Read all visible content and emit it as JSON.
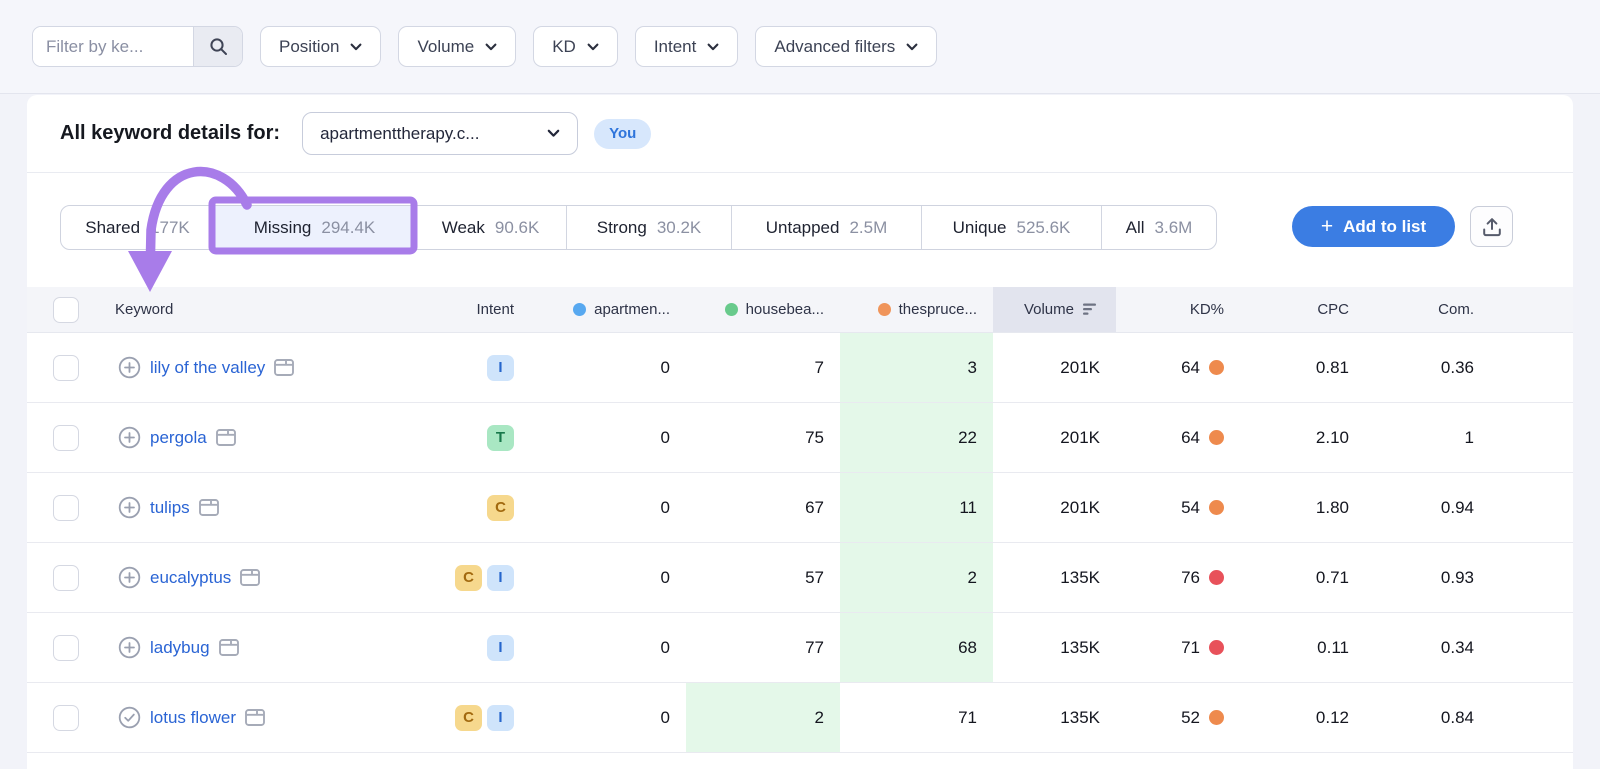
{
  "topbar": {
    "search_placeholder": "Filter by ke...",
    "filters": [
      "Position",
      "Volume",
      "KD",
      "Intent",
      "Advanced filters"
    ]
  },
  "details": {
    "label": "All keyword details for:",
    "domain": "apartmenttherapy.c...",
    "badge": "You"
  },
  "tabs": [
    {
      "label": "Shared",
      "count": "177K",
      "selected": false
    },
    {
      "label": "Missing",
      "count": "294.4K",
      "selected": true
    },
    {
      "label": "Weak",
      "count": "90.6K",
      "selected": false
    },
    {
      "label": "Strong",
      "count": "30.2K",
      "selected": false
    },
    {
      "label": "Untapped",
      "count": "2.5M",
      "selected": false
    },
    {
      "label": "Unique",
      "count": "525.6K",
      "selected": false
    },
    {
      "label": "All",
      "count": "3.6M",
      "selected": false
    }
  ],
  "actions": {
    "add_to_list": "Add to list"
  },
  "annotation_color": "#a87ce9",
  "table": {
    "columns": {
      "keyword": "Keyword",
      "intent": "Intent",
      "competitors": [
        {
          "label": "apartmen...",
          "color": "#57a8f0"
        },
        {
          "label": "housebea...",
          "color": "#68ca8c"
        },
        {
          "label": "thespruce...",
          "color": "#f0955b"
        }
      ],
      "volume": "Volume",
      "kd": "KD%",
      "cpc": "CPC",
      "com": "Com."
    },
    "rows": [
      {
        "keyword": "lily of the valley",
        "added": false,
        "intents": [
          "I"
        ],
        "competitor_values": [
          "0",
          "7",
          "3"
        ],
        "green_index": 2,
        "volume": "201K",
        "kd": "64",
        "kd_level": "orange",
        "cpc": "0.81",
        "com": "0.36"
      },
      {
        "keyword": "pergola",
        "added": false,
        "intents": [
          "T"
        ],
        "competitor_values": [
          "0",
          "75",
          "22"
        ],
        "green_index": 2,
        "volume": "201K",
        "kd": "64",
        "kd_level": "orange",
        "cpc": "2.10",
        "com": "1"
      },
      {
        "keyword": "tulips",
        "added": false,
        "intents": [
          "C"
        ],
        "competitor_values": [
          "0",
          "67",
          "11"
        ],
        "green_index": 2,
        "volume": "201K",
        "kd": "54",
        "kd_level": "orange",
        "cpc": "1.80",
        "com": "0.94"
      },
      {
        "keyword": "eucalyptus",
        "added": false,
        "intents": [
          "C",
          "I"
        ],
        "competitor_values": [
          "0",
          "57",
          "2"
        ],
        "green_index": 2,
        "volume": "135K",
        "kd": "76",
        "kd_level": "red",
        "cpc": "0.71",
        "com": "0.93"
      },
      {
        "keyword": "ladybug",
        "added": false,
        "intents": [
          "I"
        ],
        "competitor_values": [
          "0",
          "77",
          "68"
        ],
        "green_index": 2,
        "volume": "135K",
        "kd": "71",
        "kd_level": "red",
        "cpc": "0.11",
        "com": "0.34"
      },
      {
        "keyword": "lotus flower",
        "added": true,
        "intents": [
          "C",
          "I"
        ],
        "competitor_values": [
          "0",
          "2",
          "71"
        ],
        "green_index": 1,
        "volume": "135K",
        "kd": "52",
        "kd_level": "orange",
        "cpc": "0.12",
        "com": "0.84"
      }
    ]
  },
  "intent_styles": {
    "I": {
      "bg": "#cfe4fb",
      "fg": "#2666cc"
    },
    "T": {
      "bg": "#a9e7c3",
      "fg": "#17784a"
    },
    "C": {
      "bg": "#f6d88d",
      "fg": "#a2690f"
    }
  },
  "kd_colors": {
    "orange": "#ee8a4d",
    "red": "#e8515a"
  }
}
